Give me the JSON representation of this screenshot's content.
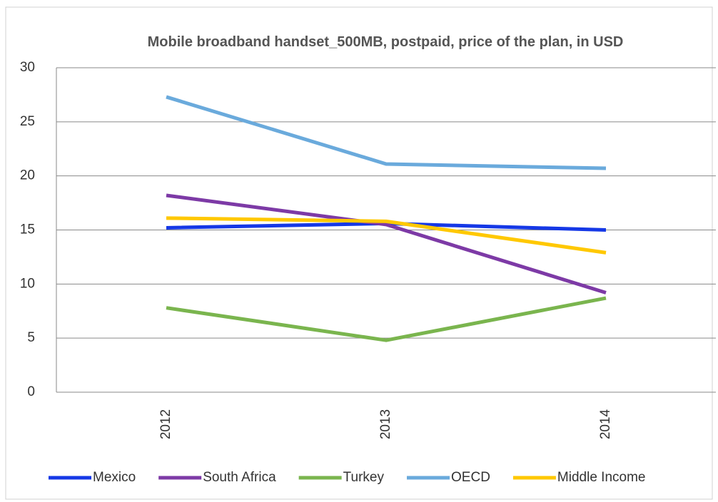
{
  "chart_data": {
    "type": "line",
    "title": "Mobile broadband handset_500MB, postpaid, price of the plan, in USD",
    "categories": [
      "2012",
      "2013",
      "2014"
    ],
    "series": [
      {
        "name": "Mexico",
        "color": "#1538e6",
        "values": [
          15.2,
          15.6,
          15.0
        ]
      },
      {
        "name": "South Africa",
        "color": "#7d3aa6",
        "values": [
          18.2,
          15.5,
          9.2
        ]
      },
      {
        "name": "Turkey",
        "color": "#7ab54e",
        "values": [
          7.8,
          4.8,
          8.7
        ]
      },
      {
        "name": "OECD",
        "color": "#6aaadc",
        "values": [
          27.3,
          21.1,
          20.7
        ]
      },
      {
        "name": "Middle Income",
        "color": "#ffc800",
        "values": [
          16.1,
          15.8,
          12.9
        ]
      }
    ],
    "ylim": [
      0,
      30
    ],
    "yticks": [
      0,
      5,
      10,
      15,
      20,
      25,
      30
    ],
    "grid": true,
    "legend": "bottom"
  }
}
